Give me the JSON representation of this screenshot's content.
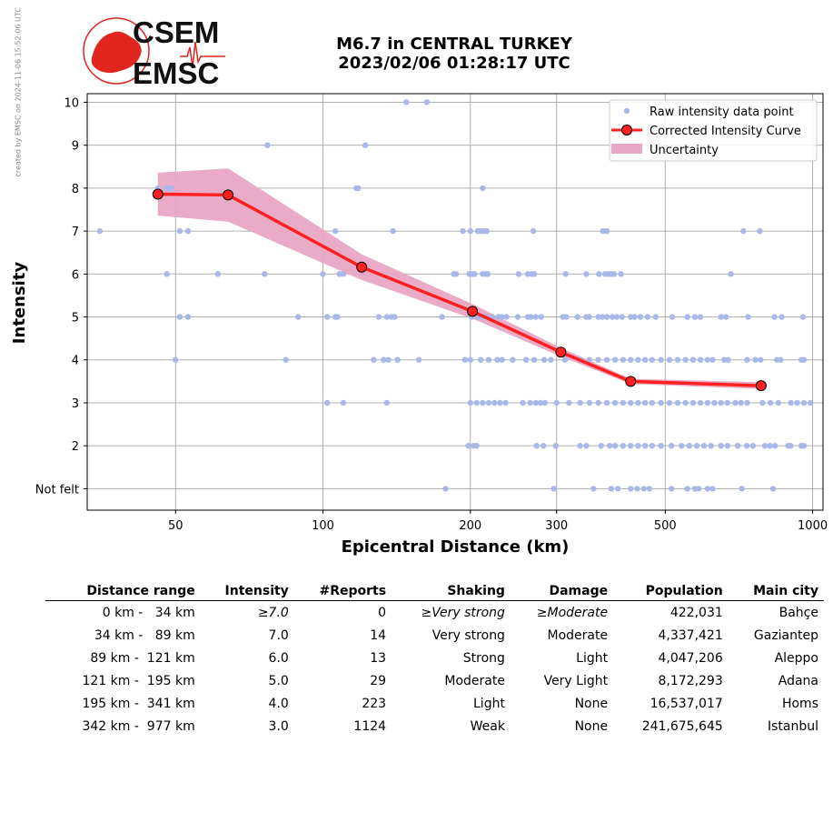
{
  "side_note": "created by EMSC on 2024-11-06 15:52:06 UTC",
  "logo": {
    "line1": "CSEM",
    "line2": "EMSC",
    "color": "#e0261f"
  },
  "title": {
    "line1": "M6.7 in CENTRAL TURKEY",
    "line2": "2023/02/06 01:28:17 UTC"
  },
  "colors": {
    "raw": "#a9b8e8",
    "curve": "#ff2020",
    "uncertainty": "#e8a7c4",
    "marker": "#ff2020"
  },
  "chart_data": {
    "type": "scatter",
    "xscale": "log",
    "xlim": [
      33,
      1050
    ],
    "ylim": [
      0.5,
      10.2
    ],
    "xlabel": "Epicentral Distance (km)",
    "ylabel": "Intensity",
    "x_ticks": [
      {
        "v": 50,
        "label": "50"
      },
      {
        "v": 100,
        "label": "100"
      },
      {
        "v": 200,
        "label": "200"
      },
      {
        "v": 300,
        "label": "300"
      },
      {
        "v": 500,
        "label": "500"
      },
      {
        "v": 1000,
        "label": "1000"
      }
    ],
    "y_ticks": [
      {
        "v": 1,
        "label": "Not felt"
      },
      {
        "v": 2,
        "label": "2"
      },
      {
        "v": 3,
        "label": "3"
      },
      {
        "v": 4,
        "label": "4"
      },
      {
        "v": 5,
        "label": "5"
      },
      {
        "v": 6,
        "label": "6"
      },
      {
        "v": 7,
        "label": "7"
      },
      {
        "v": 8,
        "label": "8"
      },
      {
        "v": 9,
        "label": "9"
      },
      {
        "v": 10,
        "label": "10"
      }
    ],
    "grid": true,
    "legend_position": "top-right",
    "legend": [
      "Raw intensity data point",
      "Corrected Intensity Curve",
      "Uncertainty"
    ],
    "raw_points": [
      [
        148,
        10
      ],
      [
        163,
        10
      ],
      [
        77,
        9
      ],
      [
        122,
        9
      ],
      [
        46,
        8
      ],
      [
        48,
        8
      ],
      [
        49,
        8
      ],
      [
        117,
        8
      ],
      [
        118,
        8
      ],
      [
        212,
        8
      ],
      [
        35,
        7
      ],
      [
        51,
        7
      ],
      [
        53,
        7
      ],
      [
        106,
        7
      ],
      [
        139,
        7
      ],
      [
        193,
        7
      ],
      [
        200,
        7
      ],
      [
        207,
        7
      ],
      [
        209,
        7
      ],
      [
        211,
        7
      ],
      [
        214,
        7
      ],
      [
        216,
        7
      ],
      [
        269,
        7
      ],
      [
        373,
        7
      ],
      [
        380,
        7
      ],
      [
        722,
        7
      ],
      [
        780,
        7
      ],
      [
        48,
        6
      ],
      [
        61,
        6
      ],
      [
        76,
        6
      ],
      [
        100,
        6
      ],
      [
        108,
        6
      ],
      [
        110,
        6
      ],
      [
        185,
        6
      ],
      [
        187,
        6
      ],
      [
        199,
        6
      ],
      [
        202,
        6
      ],
      [
        204,
        6
      ],
      [
        212,
        6
      ],
      [
        215,
        6
      ],
      [
        217,
        6
      ],
      [
        251,
        6
      ],
      [
        262,
        6
      ],
      [
        267,
        6
      ],
      [
        270,
        6
      ],
      [
        313,
        6
      ],
      [
        345,
        6
      ],
      [
        366,
        6
      ],
      [
        377,
        6
      ],
      [
        383,
        6
      ],
      [
        387,
        6
      ],
      [
        393,
        6
      ],
      [
        406,
        6
      ],
      [
        681,
        6
      ],
      [
        51,
        5
      ],
      [
        53,
        5
      ],
      [
        89,
        5
      ],
      [
        102,
        5
      ],
      [
        106,
        5
      ],
      [
        107,
        5
      ],
      [
        130,
        5
      ],
      [
        135,
        5
      ],
      [
        138,
        5
      ],
      [
        140,
        5
      ],
      [
        175,
        5
      ],
      [
        201,
        5
      ],
      [
        207,
        5
      ],
      [
        212,
        5
      ],
      [
        216,
        5
      ],
      [
        222,
        5
      ],
      [
        228,
        5
      ],
      [
        232,
        5
      ],
      [
        237,
        5
      ],
      [
        250,
        5
      ],
      [
        262,
        5
      ],
      [
        266,
        5
      ],
      [
        272,
        5
      ],
      [
        279,
        5
      ],
      [
        309,
        5
      ],
      [
        314,
        5
      ],
      [
        331,
        5
      ],
      [
        345,
        5
      ],
      [
        350,
        5
      ],
      [
        365,
        5
      ],
      [
        372,
        5
      ],
      [
        380,
        5
      ],
      [
        390,
        5
      ],
      [
        398,
        5
      ],
      [
        408,
        5
      ],
      [
        425,
        5
      ],
      [
        433,
        5
      ],
      [
        445,
        5
      ],
      [
        460,
        5
      ],
      [
        478,
        5
      ],
      [
        517,
        5
      ],
      [
        555,
        5
      ],
      [
        575,
        5
      ],
      [
        590,
        5
      ],
      [
        650,
        5
      ],
      [
        665,
        5
      ],
      [
        738,
        5
      ],
      [
        836,
        5
      ],
      [
        865,
        5
      ],
      [
        955,
        5
      ],
      [
        50,
        4
      ],
      [
        84,
        4
      ],
      [
        127,
        4
      ],
      [
        133,
        4
      ],
      [
        136,
        4
      ],
      [
        142,
        4
      ],
      [
        157,
        4
      ],
      [
        195,
        4
      ],
      [
        200,
        4
      ],
      [
        210,
        4
      ],
      [
        218,
        4
      ],
      [
        227,
        4
      ],
      [
        232,
        4
      ],
      [
        244,
        4
      ],
      [
        260,
        4
      ],
      [
        270,
        4
      ],
      [
        283,
        4
      ],
      [
        292,
        4
      ],
      [
        312,
        4
      ],
      [
        335,
        4
      ],
      [
        350,
        4
      ],
      [
        365,
        4
      ],
      [
        380,
        4
      ],
      [
        395,
        4
      ],
      [
        410,
        4
      ],
      [
        425,
        4
      ],
      [
        440,
        4
      ],
      [
        455,
        4
      ],
      [
        470,
        4
      ],
      [
        490,
        4
      ],
      [
        510,
        4
      ],
      [
        530,
        4
      ],
      [
        550,
        4
      ],
      [
        570,
        4
      ],
      [
        590,
        4
      ],
      [
        610,
        4
      ],
      [
        625,
        4
      ],
      [
        660,
        4
      ],
      [
        672,
        4
      ],
      [
        735,
        4
      ],
      [
        764,
        4
      ],
      [
        783,
        4
      ],
      [
        845,
        4
      ],
      [
        860,
        4
      ],
      [
        948,
        4
      ],
      [
        960,
        4
      ],
      [
        102,
        3
      ],
      [
        110,
        3
      ],
      [
        135,
        3
      ],
      [
        200,
        3
      ],
      [
        206,
        3
      ],
      [
        212,
        3
      ],
      [
        218,
        3
      ],
      [
        224,
        3
      ],
      [
        230,
        3
      ],
      [
        236,
        3
      ],
      [
        256,
        3
      ],
      [
        265,
        3
      ],
      [
        272,
        3
      ],
      [
        278,
        3
      ],
      [
        284,
        3
      ],
      [
        300,
        3
      ],
      [
        318,
        3
      ],
      [
        335,
        3
      ],
      [
        350,
        3
      ],
      [
        365,
        3
      ],
      [
        380,
        3
      ],
      [
        395,
        3
      ],
      [
        410,
        3
      ],
      [
        425,
        3
      ],
      [
        440,
        3
      ],
      [
        455,
        3
      ],
      [
        470,
        3
      ],
      [
        490,
        3
      ],
      [
        510,
        3
      ],
      [
        530,
        3
      ],
      [
        550,
        3
      ],
      [
        570,
        3
      ],
      [
        590,
        3
      ],
      [
        610,
        3
      ],
      [
        630,
        3
      ],
      [
        650,
        3
      ],
      [
        670,
        3
      ],
      [
        695,
        3
      ],
      [
        714,
        3
      ],
      [
        735,
        3
      ],
      [
        790,
        3
      ],
      [
        820,
        3
      ],
      [
        851,
        3
      ],
      [
        903,
        3
      ],
      [
        930,
        3
      ],
      [
        960,
        3
      ],
      [
        990,
        3
      ],
      [
        198,
        2
      ],
      [
        203,
        2
      ],
      [
        206,
        2
      ],
      [
        273,
        2
      ],
      [
        282,
        2
      ],
      [
        299,
        2
      ],
      [
        335,
        2
      ],
      [
        345,
        2
      ],
      [
        370,
        2
      ],
      [
        385,
        2
      ],
      [
        395,
        2
      ],
      [
        410,
        2
      ],
      [
        425,
        2
      ],
      [
        440,
        2
      ],
      [
        455,
        2
      ],
      [
        470,
        2
      ],
      [
        490,
        2
      ],
      [
        515,
        2
      ],
      [
        540,
        2
      ],
      [
        560,
        2
      ],
      [
        580,
        2
      ],
      [
        600,
        2
      ],
      [
        620,
        2
      ],
      [
        650,
        2
      ],
      [
        670,
        2
      ],
      [
        703,
        2
      ],
      [
        734,
        2
      ],
      [
        755,
        2
      ],
      [
        799,
        2
      ],
      [
        818,
        2
      ],
      [
        838,
        2
      ],
      [
        891,
        2
      ],
      [
        902,
        2
      ],
      [
        948,
        2
      ],
      [
        960,
        2
      ],
      [
        178,
        1
      ],
      [
        296,
        1
      ],
      [
        357,
        1
      ],
      [
        388,
        1
      ],
      [
        400,
        1
      ],
      [
        425,
        1
      ],
      [
        438,
        1
      ],
      [
        452,
        1
      ],
      [
        464,
        1
      ],
      [
        515,
        1
      ],
      [
        555,
        1
      ],
      [
        575,
        1
      ],
      [
        585,
        1
      ],
      [
        610,
        1
      ],
      [
        625,
        1
      ],
      [
        717,
        1
      ],
      [
        830,
        1
      ]
    ],
    "series": [
      {
        "name": "Corrected Intensity Curve",
        "x": [
          46,
          64,
          120,
          202,
          306,
          425,
          785
        ],
        "y": [
          7.86,
          7.84,
          6.16,
          5.13,
          4.18,
          3.5,
          3.4
        ]
      }
    ],
    "uncertainty": {
      "x": [
        46,
        64,
        120,
        202,
        306,
        425,
        785
      ],
      "upper": [
        8.36,
        8.46,
        6.46,
        5.3,
        4.28,
        3.56,
        3.48
      ],
      "lower": [
        7.36,
        7.22,
        5.86,
        4.96,
        4.08,
        3.44,
        3.32
      ]
    }
  },
  "table": {
    "headers": [
      "Distance range",
      "Intensity",
      "#Reports",
      "Shaking",
      "Damage",
      "Population",
      "Main city"
    ],
    "rows": [
      {
        "range": "0 km -   34 km",
        "intensity": "≥7.0",
        "reports": "0",
        "shaking": "≥Very strong",
        "damage": "≥Moderate",
        "population": "422,031",
        "city": "Bahçe"
      },
      {
        "range": "34 km -   89 km",
        "intensity": "7.0",
        "reports": "14",
        "shaking": "Very strong",
        "damage": "Moderate",
        "population": "4,337,421",
        "city": "Gaziantep"
      },
      {
        "range": "89 km -  121 km",
        "intensity": "6.0",
        "reports": "13",
        "shaking": "Strong",
        "damage": "Light",
        "population": "4,047,206",
        "city": "Aleppo"
      },
      {
        "range": "121 km -  195 km",
        "intensity": "5.0",
        "reports": "29",
        "shaking": "Moderate",
        "damage": "Very Light",
        "population": "8,172,293",
        "city": "Adana"
      },
      {
        "range": "195 km -  341 km",
        "intensity": "4.0",
        "reports": "223",
        "shaking": "Light",
        "damage": "None",
        "population": "16,537,017",
        "city": "Homs"
      },
      {
        "range": "342 km -  977 km",
        "intensity": "3.0",
        "reports": "1124",
        "shaking": "Weak",
        "damage": "None",
        "population": "241,675,645",
        "city": "Istanbul"
      }
    ]
  }
}
